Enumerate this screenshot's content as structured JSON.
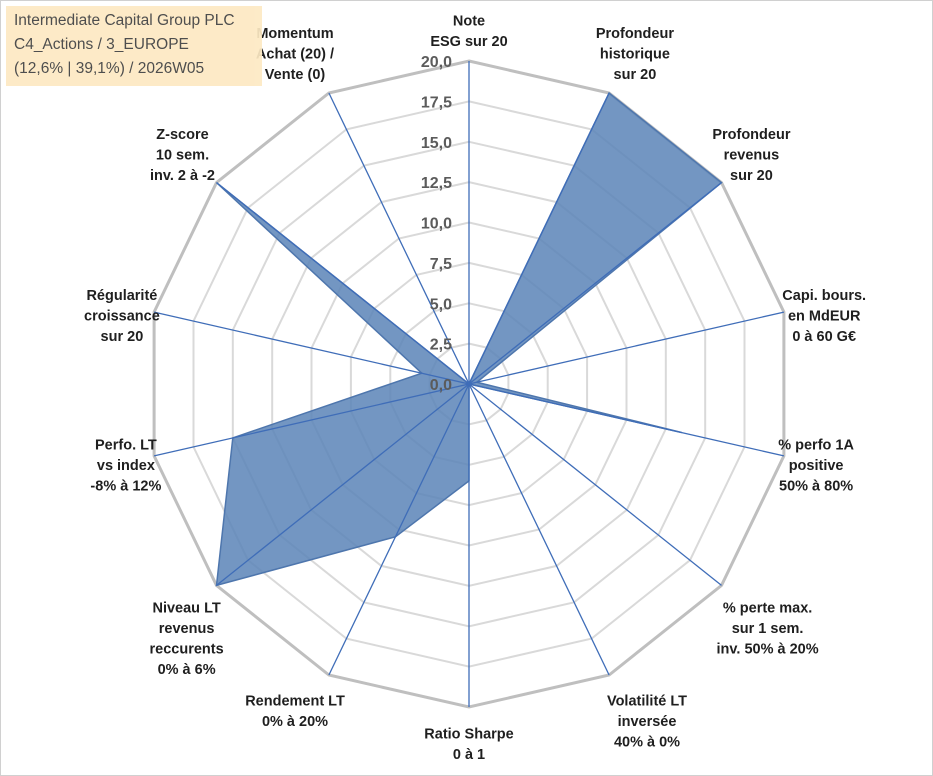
{
  "info_box": {
    "line1": "Intermediate Capital Group PLC",
    "line2": "C4_Actions / 3_EUROPE",
    "line3": "(12,6% | 39,1%) / 2026W05"
  },
  "chart_data": {
    "type": "radar",
    "title": "",
    "range": [
      0,
      20
    ],
    "major_unit": 2.5,
    "tick_labels": [
      "0,0",
      "2,5",
      "5,0",
      "7,5",
      "10,0",
      "12,5",
      "15,0",
      "17,5",
      "20,0"
    ],
    "categories": [
      [
        "Note",
        "ESG sur 20"
      ],
      [
        "Profondeur",
        "historique",
        "sur 20"
      ],
      [
        "Profondeur",
        "revenus",
        "sur 20"
      ],
      [
        "Capi. bours.",
        "en MdEUR",
        "0 à 60 G€"
      ],
      [
        "% perfo 1A",
        "positive",
        "50% à 80%"
      ],
      [
        "% perte max.",
        "sur 1 sem.",
        "inv. 50% à 20%"
      ],
      [
        "Volatilité LT",
        "inversée",
        "40% à 0%"
      ],
      [
        "Ratio Sharpe",
        "0 à 1"
      ],
      [
        "Rendement LT",
        "0% à 20%"
      ],
      [
        "Niveau LT",
        "revenus",
        "reccurents",
        "0% à 6%"
      ],
      [
        "Perfo. LT",
        "vs index",
        "-8% à 12%"
      ],
      [
        "Régularité",
        "croissance",
        "sur 20"
      ],
      [
        "Z-score",
        "10 sem.",
        "inv. 2 à -2"
      ],
      [
        "Momentum",
        "Achat (20) /",
        "Vente (0)"
      ]
    ],
    "series": [
      {
        "values": [
          0,
          20,
          20,
          0.5,
          13.5,
          0,
          0,
          6,
          10.5,
          20,
          15,
          3,
          20,
          0
        ]
      }
    ],
    "colors": {
      "fill": "#5b84b7",
      "outline": "#4e76ad",
      "spokes": "#3f6db8",
      "grid_outer": "#bfbfbf",
      "grid_inner": "#d9d9d9"
    },
    "grid": true,
    "legend": "none"
  }
}
